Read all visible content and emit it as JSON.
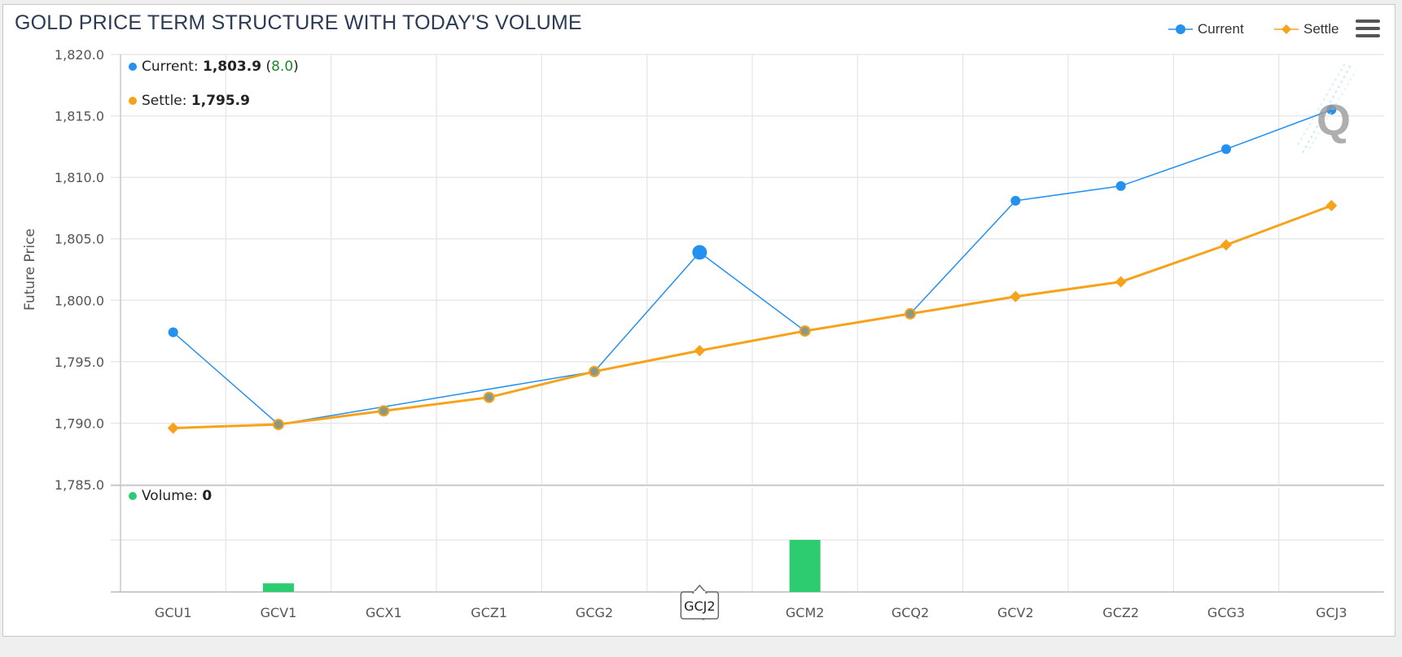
{
  "title": "GOLD PRICE TERM STRUCTURE WITH TODAY'S VOLUME",
  "legend": {
    "current_label": "Current",
    "settle_label": "Settle"
  },
  "colors": {
    "current": "#2490ef",
    "settle": "#f7a21b",
    "volume": "#2ecc71",
    "grid": "#e4e4e4",
    "axis_text": "#555555"
  },
  "tooltip": {
    "current_label": "Current:",
    "current_value": "1,803.9",
    "current_change": "8.0",
    "settle_label": "Settle:",
    "settle_value": "1,795.9",
    "volume_label": "Volume:",
    "volume_value": "0"
  },
  "crosshair_label": "GCJ2",
  "chart_data": {
    "type": "line",
    "categories": [
      "GCU1",
      "GCV1",
      "GCX1",
      "GCZ1",
      "GCG2",
      "GCJ2",
      "GCM2",
      "GCQ2",
      "GCV2",
      "GCZ2",
      "GCG3",
      "GCJ3"
    ],
    "ylabel": "Future Price",
    "ylim": [
      1785,
      1820
    ],
    "yticks": [
      1785,
      1790,
      1795,
      1800,
      1805,
      1810,
      1815,
      1820
    ],
    "ytick_labels": [
      "1,785.0",
      "1,790.0",
      "1,795.0",
      "1,800.0",
      "1,805.0",
      "1,810.0",
      "1,815.0",
      "1,820.0"
    ],
    "series": [
      {
        "name": "Current",
        "values": [
          1797.4,
          1789.9,
          null,
          null,
          1794.2,
          1803.9,
          1797.5,
          1798.9,
          1808.1,
          1809.3,
          1812.3,
          1815.5
        ]
      },
      {
        "name": "Settle",
        "values": [
          1789.6,
          1789.9,
          1791.0,
          1792.1,
          1794.2,
          1795.9,
          1797.5,
          1798.9,
          1800.3,
          1801.5,
          1804.5,
          1807.7
        ]
      }
    ],
    "volume": {
      "name": "Volume",
      "values": [
        0,
        1,
        0,
        0,
        0,
        0,
        6,
        0,
        0,
        0,
        0,
        0
      ],
      "ylim": [
        0,
        6
      ]
    },
    "highlight_index": 5,
    "grid": true,
    "legend_position": "top-right"
  }
}
